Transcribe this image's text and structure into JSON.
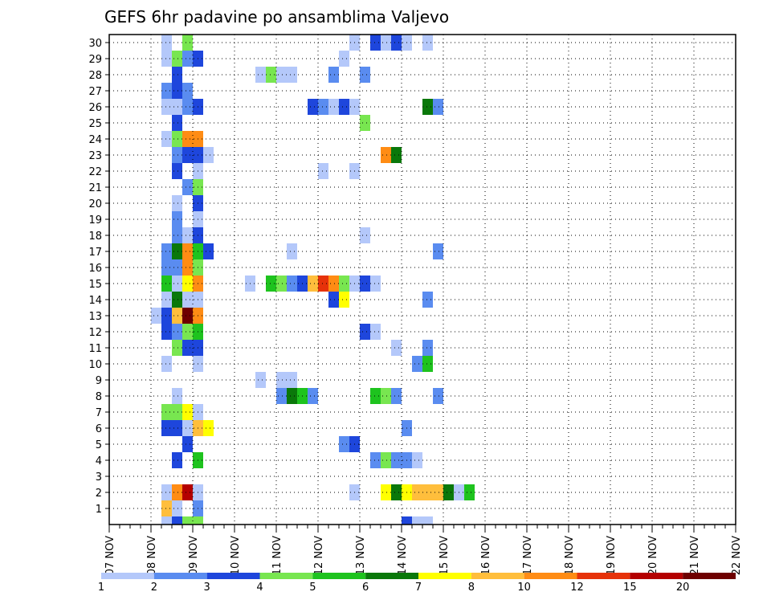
{
  "chart_data": {
    "type": "heatmap",
    "title": "GEFS 6hr padavine po ansamblima Valjevo",
    "xlabel": "",
    "ylabel": "",
    "y_tick_labels": [
      "1",
      "2",
      "3",
      "4",
      "5",
      "6",
      "7",
      "8",
      "9",
      "10",
      "11",
      "12",
      "13",
      "14",
      "15",
      "16",
      "17",
      "18",
      "19",
      "20",
      "21",
      "22",
      "23",
      "24",
      "25",
      "26",
      "27",
      "28",
      "29",
      "30"
    ],
    "ylim": [
      0,
      30
    ],
    "x_tick_labels": [
      "07 NOV",
      "08 NOV",
      "09 NOV",
      "10 NOV",
      "11 NOV",
      "12 NOV",
      "13 NOV",
      "14 NOV",
      "15 NOV",
      "16 NOV",
      "17 NOV",
      "18 NOV",
      "19 NOV",
      "20 NOV",
      "21 NOV",
      "22 NOV"
    ],
    "x_range_steps": [
      0,
      60
    ],
    "step_hours": 6,
    "grid": true,
    "color_levels": {
      "labels": [
        "1",
        "2",
        "3",
        "4",
        "5",
        "6",
        "7",
        "8",
        "10",
        "12",
        "15",
        "20"
      ],
      "colors": [
        "#b4c8fa",
        "#5a8cf0",
        "#1e46dc",
        "#78e650",
        "#1ec31e",
        "#0a780a",
        "#ffff00",
        "#ffbe3c",
        "#ff8c14",
        "#e6320a",
        "#b40000",
        "#6e0000"
      ]
    },
    "cells": [
      [
        5,
        30,
        1
      ],
      [
        7,
        30,
        4
      ],
      [
        23,
        30,
        1
      ],
      [
        25,
        30,
        3
      ],
      [
        26,
        30,
        1
      ],
      [
        27,
        30,
        3
      ],
      [
        28,
        30,
        1
      ],
      [
        30,
        30,
        1
      ],
      [
        5,
        29,
        1
      ],
      [
        6,
        29,
        4
      ],
      [
        7,
        29,
        2
      ],
      [
        8,
        29,
        3
      ],
      [
        22,
        29,
        1
      ],
      [
        6,
        28,
        3
      ],
      [
        14,
        28,
        1
      ],
      [
        15,
        28,
        4
      ],
      [
        16,
        28,
        1
      ],
      [
        17,
        28,
        1
      ],
      [
        21,
        28,
        2
      ],
      [
        24,
        28,
        2
      ],
      [
        5,
        27,
        2
      ],
      [
        6,
        27,
        3
      ],
      [
        7,
        27,
        2
      ],
      [
        5,
        26,
        1
      ],
      [
        6,
        26,
        1
      ],
      [
        7,
        26,
        2
      ],
      [
        8,
        26,
        3
      ],
      [
        19,
        26,
        3
      ],
      [
        20,
        26,
        2
      ],
      [
        21,
        26,
        1
      ],
      [
        22,
        26,
        3
      ],
      [
        23,
        26,
        1
      ],
      [
        30,
        26,
        6
      ],
      [
        31,
        26,
        2
      ],
      [
        6,
        25,
        3
      ],
      [
        24,
        25,
        4
      ],
      [
        5,
        24,
        1
      ],
      [
        6,
        24,
        4
      ],
      [
        7,
        24,
        9
      ],
      [
        8,
        24,
        9
      ],
      [
        6,
        23,
        2
      ],
      [
        7,
        23,
        3
      ],
      [
        8,
        23,
        3
      ],
      [
        9,
        23,
        1
      ],
      [
        26,
        23,
        9
      ],
      [
        27,
        23,
        6
      ],
      [
        6,
        22,
        3
      ],
      [
        8,
        22,
        1
      ],
      [
        20,
        22,
        1
      ],
      [
        23,
        22,
        1
      ],
      [
        7,
        21,
        2
      ],
      [
        8,
        21,
        4
      ],
      [
        6,
        20,
        1
      ],
      [
        8,
        20,
        3
      ],
      [
        6,
        19,
        2
      ],
      [
        8,
        19,
        1
      ],
      [
        6,
        18,
        2
      ],
      [
        7,
        18,
        1
      ],
      [
        8,
        18,
        3
      ],
      [
        24,
        18,
        1
      ],
      [
        5,
        17,
        2
      ],
      [
        6,
        17,
        6
      ],
      [
        7,
        17,
        9
      ],
      [
        8,
        17,
        5
      ],
      [
        9,
        17,
        3
      ],
      [
        17,
        17,
        1
      ],
      [
        31,
        17,
        2
      ],
      [
        5,
        16,
        2
      ],
      [
        6,
        16,
        2
      ],
      [
        7,
        16,
        9
      ],
      [
        8,
        16,
        4
      ],
      [
        5,
        15,
        5
      ],
      [
        6,
        15,
        1
      ],
      [
        7,
        15,
        7
      ],
      [
        8,
        15,
        9
      ],
      [
        13,
        15,
        1
      ],
      [
        15,
        15,
        5
      ],
      [
        16,
        15,
        4
      ],
      [
        17,
        15,
        2
      ],
      [
        18,
        15,
        3
      ],
      [
        19,
        15,
        8
      ],
      [
        20,
        15,
        10
      ],
      [
        21,
        15,
        9
      ],
      [
        22,
        15,
        4
      ],
      [
        23,
        15,
        1
      ],
      [
        24,
        15,
        3
      ],
      [
        25,
        15,
        1
      ],
      [
        5,
        14,
        1
      ],
      [
        6,
        14,
        6
      ],
      [
        7,
        14,
        1
      ],
      [
        8,
        14,
        1
      ],
      [
        21,
        14,
        3
      ],
      [
        22,
        14,
        7
      ],
      [
        30,
        14,
        2
      ],
      [
        4,
        13,
        1
      ],
      [
        5,
        13,
        3
      ],
      [
        6,
        13,
        8
      ],
      [
        7,
        13,
        12
      ],
      [
        8,
        13,
        9
      ],
      [
        5,
        12,
        3
      ],
      [
        6,
        12,
        2
      ],
      [
        7,
        12,
        4
      ],
      [
        8,
        12,
        5
      ],
      [
        24,
        12,
        3
      ],
      [
        25,
        12,
        1
      ],
      [
        6,
        11,
        4
      ],
      [
        7,
        11,
        3
      ],
      [
        8,
        11,
        3
      ],
      [
        27,
        11,
        1
      ],
      [
        30,
        11,
        2
      ],
      [
        5,
        10,
        1
      ],
      [
        8,
        10,
        1
      ],
      [
        29,
        10,
        2
      ],
      [
        30,
        10,
        5
      ],
      [
        14,
        9,
        1
      ],
      [
        16,
        9,
        1
      ],
      [
        17,
        9,
        1
      ],
      [
        6,
        8,
        1
      ],
      [
        16,
        8,
        2
      ],
      [
        17,
        8,
        6
      ],
      [
        18,
        8,
        5
      ],
      [
        19,
        8,
        2
      ],
      [
        25,
        8,
        5
      ],
      [
        26,
        8,
        4
      ],
      [
        27,
        8,
        2
      ],
      [
        31,
        8,
        2
      ],
      [
        5,
        7,
        4
      ],
      [
        6,
        7,
        4
      ],
      [
        7,
        7,
        7
      ],
      [
        8,
        7,
        1
      ],
      [
        5,
        6,
        3
      ],
      [
        6,
        6,
        3
      ],
      [
        7,
        6,
        1
      ],
      [
        8,
        6,
        8
      ],
      [
        9,
        6,
        7
      ],
      [
        28,
        6,
        2
      ],
      [
        7,
        5,
        3
      ],
      [
        22,
        5,
        2
      ],
      [
        23,
        5,
        3
      ],
      [
        6,
        4,
        3
      ],
      [
        8,
        4,
        5
      ],
      [
        25,
        4,
        2
      ],
      [
        26,
        4,
        4
      ],
      [
        27,
        4,
        2
      ],
      [
        28,
        4,
        2
      ],
      [
        29,
        4,
        1
      ],
      [
        5,
        2,
        1
      ],
      [
        6,
        2,
        9
      ],
      [
        7,
        2,
        11
      ],
      [
        8,
        2,
        1
      ],
      [
        23,
        2,
        1
      ],
      [
        26,
        2,
        7
      ],
      [
        27,
        2,
        6
      ],
      [
        28,
        2,
        7
      ],
      [
        29,
        2,
        8
      ],
      [
        30,
        2,
        8
      ],
      [
        31,
        2,
        8
      ],
      [
        32,
        2,
        6
      ],
      [
        33,
        2,
        1
      ],
      [
        34,
        2,
        5
      ],
      [
        5,
        1,
        8
      ],
      [
        6,
        1,
        1
      ],
      [
        8,
        1,
        2
      ],
      [
        5,
        0,
        1
      ],
      [
        6,
        0,
        3
      ],
      [
        7,
        0,
        4
      ],
      [
        8,
        0,
        4
      ],
      [
        28,
        0,
        3
      ],
      [
        29,
        0,
        1
      ],
      [
        30,
        0,
        1
      ]
    ]
  }
}
